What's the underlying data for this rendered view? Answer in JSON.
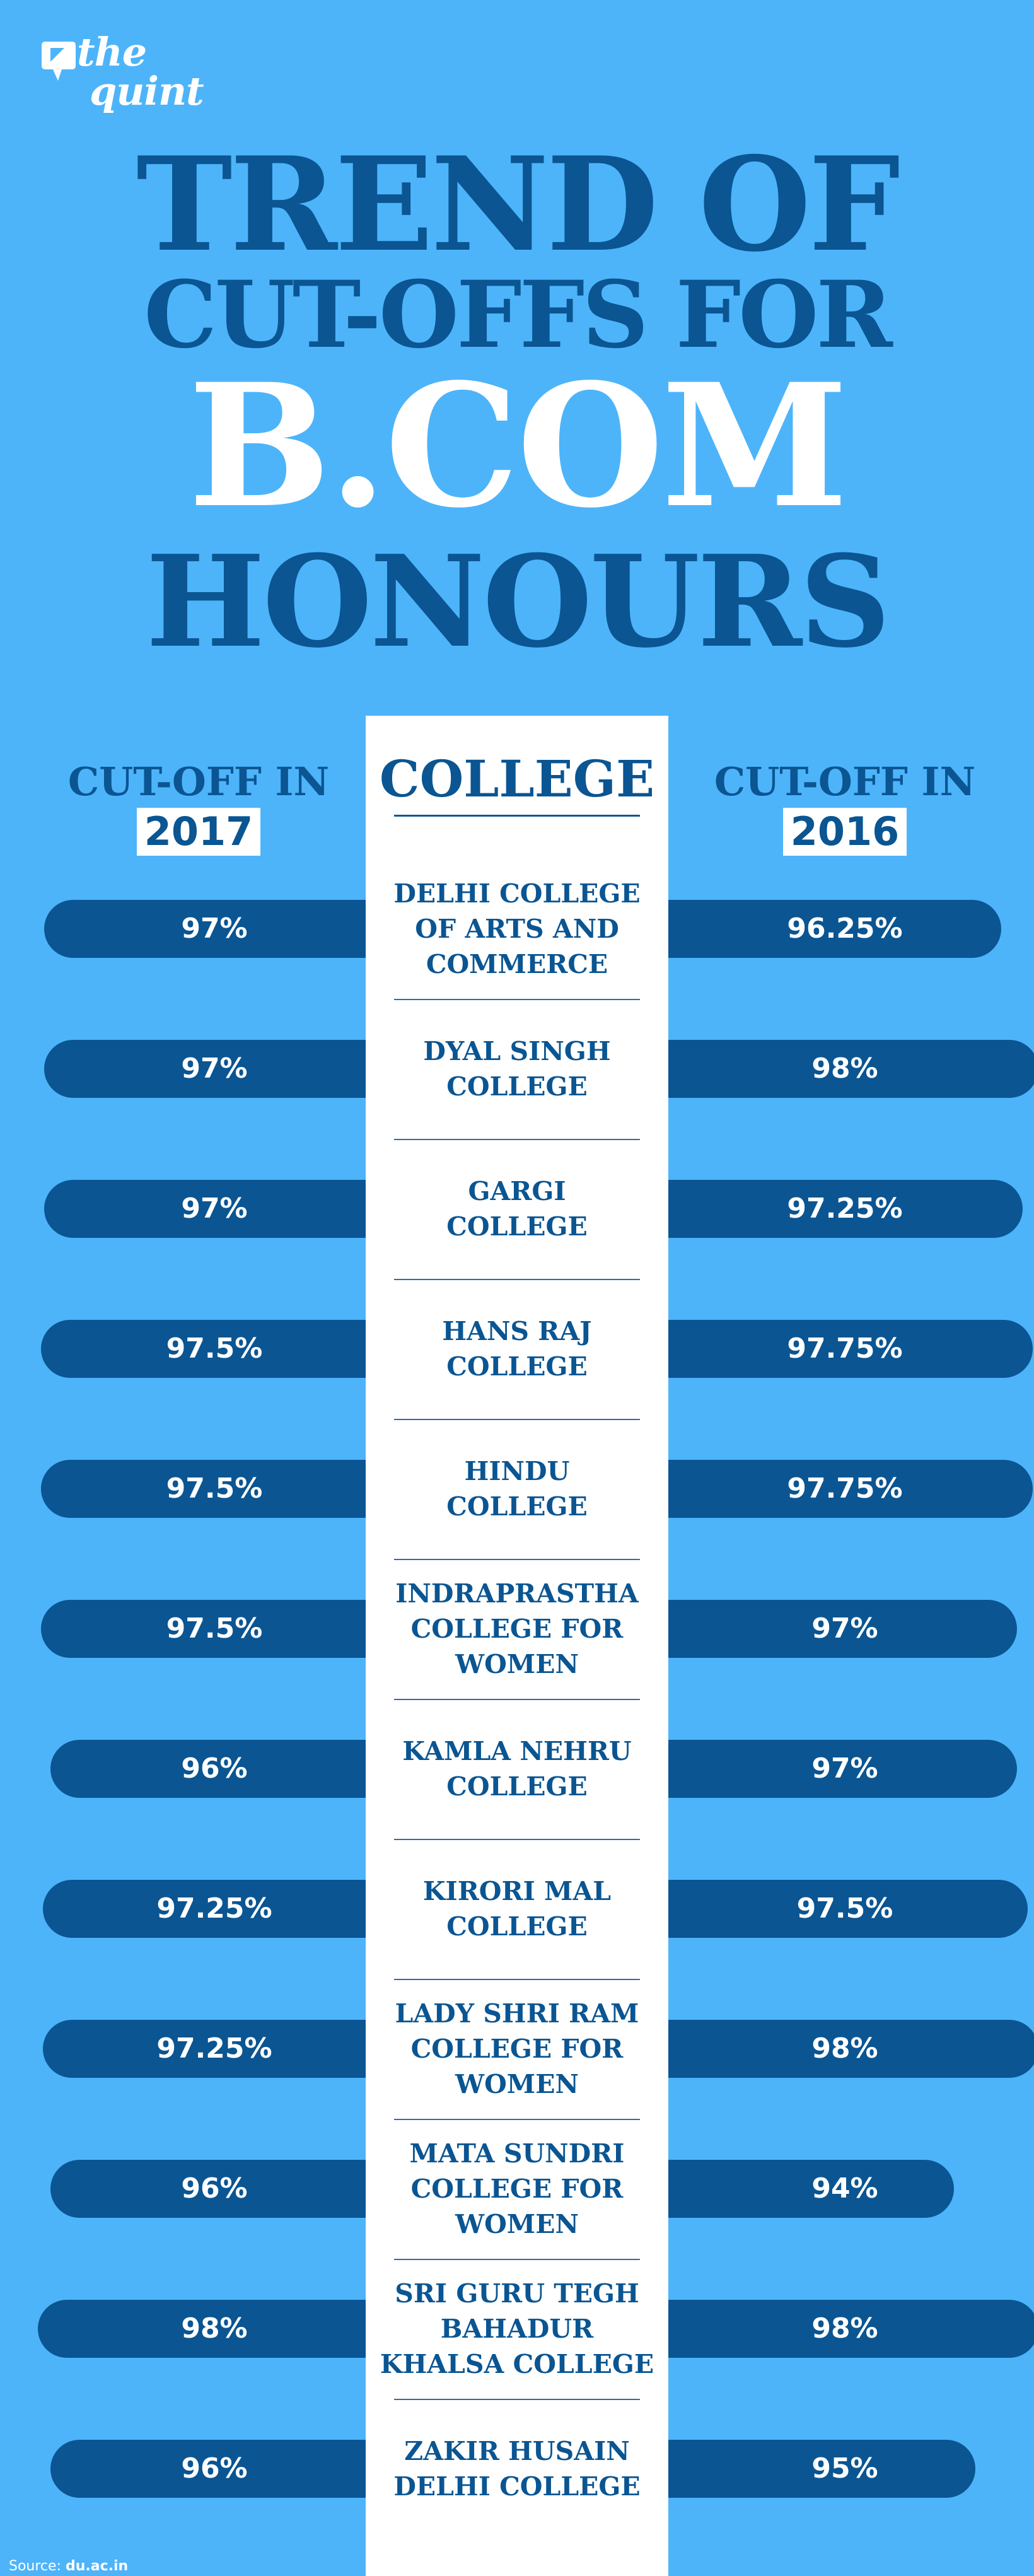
{
  "brand": {
    "line1": "the",
    "line2": "quint"
  },
  "title": {
    "line1": "TREND OF",
    "line2": "CUT-OFFS FOR",
    "line3": "B.COM",
    "line4": "HONOURS"
  },
  "headers": {
    "left_label": "CUT-OFF IN",
    "left_year": "2017",
    "center": "COLLEGE",
    "right_label": "CUT-OFF IN",
    "right_year": "2016"
  },
  "source": {
    "label": "Source:",
    "value": "du.ac.in"
  },
  "colors": {
    "background": "#4db4fa",
    "navy": "#0a5592",
    "white": "#ffffff"
  },
  "chart_data": {
    "type": "table",
    "title": "TREND OF CUT-OFFS FOR B.COM HONOURS",
    "columns": [
      "CUT-OFF IN 2017",
      "COLLEGE",
      "CUT-OFF IN 2016"
    ],
    "rows": [
      {
        "college": "DELHI COLLEGE\nOF ARTS AND\nCOMMERCE",
        "cutoff_2017": "97%",
        "cutoff_2016": "96.25%",
        "v2017": 97,
        "v2016": 96.25
      },
      {
        "college": "DYAL SINGH\nCOLLEGE",
        "cutoff_2017": "97%",
        "cutoff_2016": "98%",
        "v2017": 97,
        "v2016": 98
      },
      {
        "college": "GARGI\nCOLLEGE",
        "cutoff_2017": "97%",
        "cutoff_2016": "97.25%",
        "v2017": 97,
        "v2016": 97.25
      },
      {
        "college": "HANS RAJ\nCOLLEGE",
        "cutoff_2017": "97.5%",
        "cutoff_2016": "97.75%",
        "v2017": 97.5,
        "v2016": 97.75
      },
      {
        "college": "HINDU\nCOLLEGE",
        "cutoff_2017": "97.5%",
        "cutoff_2016": "97.75%",
        "v2017": 97.5,
        "v2016": 97.75
      },
      {
        "college": "INDRAPRASTHA\nCOLLEGE FOR\nWOMEN",
        "cutoff_2017": "97.5%",
        "cutoff_2016": "97%",
        "v2017": 97.5,
        "v2016": 97
      },
      {
        "college": "KAMLA NEHRU\nCOLLEGE",
        "cutoff_2017": "96%",
        "cutoff_2016": "97%",
        "v2017": 96,
        "v2016": 97
      },
      {
        "college": "KIRORI MAL\nCOLLEGE",
        "cutoff_2017": "97.25%",
        "cutoff_2016": "97.5%",
        "v2017": 97.25,
        "v2016": 97.5
      },
      {
        "college": "LADY SHRI RAM\nCOLLEGE FOR\nWOMEN",
        "cutoff_2017": "97.25%",
        "cutoff_2016": "98%",
        "v2017": 97.25,
        "v2016": 98
      },
      {
        "college": "MATA SUNDRI\nCOLLEGE FOR\nWOMEN",
        "cutoff_2017": "96%",
        "cutoff_2016": "94%",
        "v2017": 96,
        "v2016": 94
      },
      {
        "college": "SRI GURU TEGH\nBAHADUR\nKHALSA COLLEGE",
        "cutoff_2017": "98%",
        "cutoff_2016": "98%",
        "v2017": 98,
        "v2016": 98
      },
      {
        "college": "ZAKIR HUSAIN\nDELHI COLLEGE",
        "cutoff_2017": "96%",
        "cutoff_2016": "95%",
        "v2017": 96,
        "v2016": 95
      }
    ]
  }
}
